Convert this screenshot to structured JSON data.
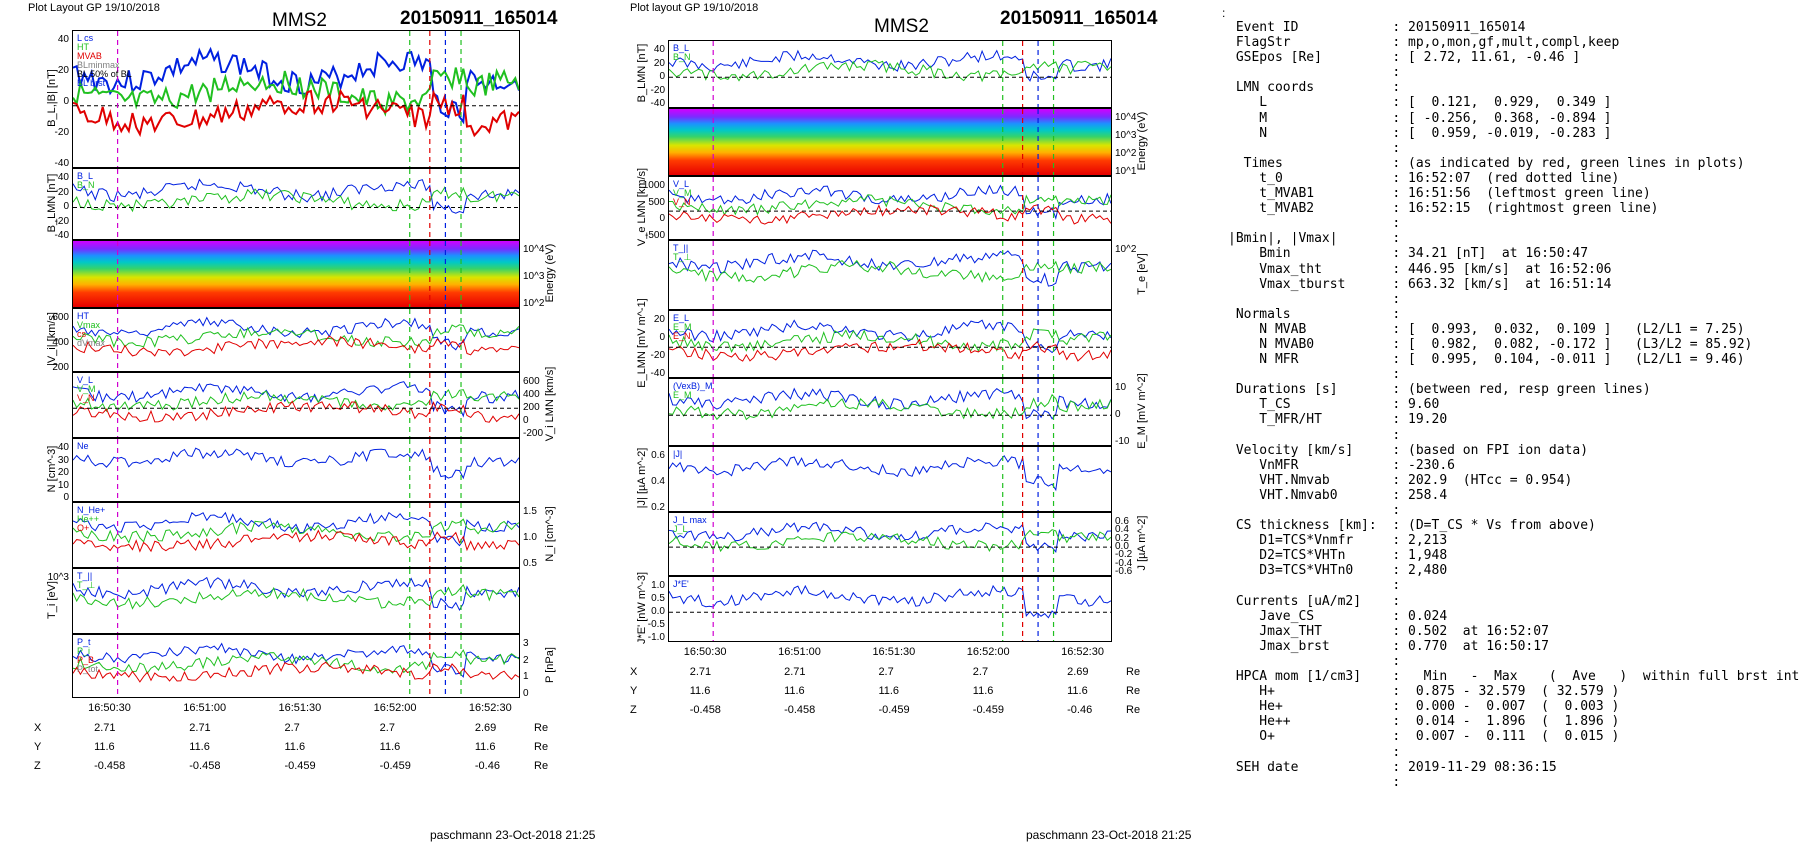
{
  "left": {
    "plot_label": "Plot Layout GP 19/10/2018",
    "spacecraft": "MMS2",
    "event": "20150911_165014",
    "footer": "paschmann 23-Oct-2018 21:25",
    "time_ticks": [
      "16:50:30",
      "16:51:00",
      "16:51:30",
      "16:52:00",
      "16:52:30"
    ],
    "coords": {
      "X": [
        "2.71",
        "2.71",
        "2.7",
        "2.7",
        "2.69"
      ],
      "Y": [
        "11.6",
        "11.6",
        "11.6",
        "11.6",
        "11.6"
      ],
      "Z": [
        "-0.458",
        "-0.458",
        "-0.459",
        "-0.459",
        "-0.46"
      ],
      "unit": "Re"
    },
    "panels": [
      {
        "ylabel": "B_L,|B| [nT]",
        "ticks": [
          "40",
          "20",
          "0",
          "-20",
          "-40"
        ],
        "legend": [
          "L cs",
          "HT",
          "MVAB",
          "BLminmax",
          "BL 50% of BL",
          "BL brst"
        ]
      },
      {
        "ylabel": "B_LMN [nT]",
        "ticks": [
          "40",
          "20",
          "0",
          "-20",
          "-40"
        ],
        "legend": [
          "B_L",
          "B_N"
        ]
      },
      {
        "ylabel": "Energy (eV)",
        "ticks": [
          "10^4",
          "10^3",
          "10^2"
        ],
        "legend": []
      },
      {
        "ylabel": "|V_i| [km/s]",
        "ticks": [
          "600",
          "400",
          "200"
        ],
        "legend": [
          "HT",
          "Vmax",
          "cs",
          "dVmax"
        ]
      },
      {
        "ylabel": "V_i LMN [km/s]",
        "ticks": [
          "600",
          "400",
          "200",
          "0",
          "-200"
        ],
        "legend": [
          "V_L",
          "V_M",
          "V_N"
        ]
      },
      {
        "ylabel": "N [cm^-3]",
        "ticks": [
          "40",
          "30",
          "20",
          "10",
          "0"
        ],
        "legend": [
          "Ne"
        ]
      },
      {
        "ylabel": "N_i [cm^-3]",
        "ticks": [
          "1.5",
          "1.0",
          "0.5"
        ],
        "legend": [
          "N_He+",
          "He++",
          "O+"
        ]
      },
      {
        "ylabel": "T_i [eV]",
        "ticks": [
          "10^3"
        ],
        "legend": [
          "T_||",
          "T_⊥"
        ]
      },
      {
        "ylabel": "P [nPa]",
        "ticks": [
          "3",
          "2",
          "1",
          "0"
        ],
        "legend": [
          "P_t",
          "P_i",
          "P_B",
          "P_tot"
        ]
      }
    ]
  },
  "middle": {
    "plot_label": "Plot layout GP 19/10/2018",
    "spacecraft": "MMS2",
    "event": "20150911_165014",
    "footer": "paschmann 23-Oct-2018 21:25",
    "time_ticks": [
      "16:50:30",
      "16:51:00",
      "16:51:30",
      "16:52:00",
      "16:52:30"
    ],
    "coords": {
      "X": [
        "2.71",
        "2.71",
        "2.7",
        "2.7",
        "2.69"
      ],
      "Y": [
        "11.6",
        "11.6",
        "11.6",
        "11.6",
        "11.6"
      ],
      "Z": [
        "-0.458",
        "-0.458",
        "-0.459",
        "-0.459",
        "-0.46"
      ],
      "unit": "Re"
    },
    "panels": [
      {
        "ylabel": "B_LMN [nT]",
        "ticks": [
          "40",
          "20",
          "0",
          "-20",
          "-40"
        ],
        "legend": [
          "B_L",
          "B_N"
        ]
      },
      {
        "ylabel": "Energy (eV)",
        "ticks": [
          "10^4",
          "10^3",
          "10^2",
          "10^1"
        ],
        "legend": []
      },
      {
        "ylabel": "V_e LMN [km/s]",
        "ticks": [
          "1000",
          "500",
          "0",
          "-500"
        ],
        "legend": [
          "V_L",
          "V_M",
          "V_N"
        ]
      },
      {
        "ylabel": "T_e [eV]",
        "ticks": [
          "10^2"
        ],
        "legend": [
          "T_||",
          "T_⊥"
        ]
      },
      {
        "ylabel": "E_LMN [mV m^-1]",
        "ticks": [
          "20",
          "0",
          "-20",
          "-40"
        ],
        "legend": [
          "E_L",
          "E_M",
          "E_N"
        ]
      },
      {
        "ylabel": "E_M [mV m^-2]",
        "ticks": [
          "10",
          "0",
          "-10"
        ],
        "legend": [
          "(VexB)_M",
          "E_M"
        ]
      },
      {
        "ylabel": "|J| [µA m^-2]",
        "ticks": [
          "0.6",
          "0.4",
          "0.2"
        ],
        "legend": [
          "|J|"
        ]
      },
      {
        "ylabel": "J [µA m^-2]",
        "ticks": [
          "0.6",
          "0.4",
          "0.2",
          "0.0",
          "-0.2",
          "-0.4",
          "-0.6"
        ],
        "legend": [
          "J_L max",
          "J_L"
        ]
      },
      {
        "ylabel": "J*E' [nW m^-3]",
        "ticks": [
          "1.0",
          "0.5",
          "0.0",
          "-0.5",
          "-1.0"
        ],
        "legend": [
          "J*E'"
        ]
      }
    ]
  },
  "summary_lines": [
    " Event ID            : 20150911_165014",
    " FlagStr             : mp,o,mon,gf,mult,compl,keep",
    " GSEpos [Re]         : [ 2.72, 11.61, -0.46 ]",
    "                     :",
    " LMN coords          :",
    "    L                : [  0.121,  0.929,  0.349 ]",
    "    M                : [ -0.256,  0.368, -0.894 ]",
    "    N                : [  0.959, -0.019, -0.283 ]",
    "                     :",
    "  Times              : (as indicated by red, green lines in plots)",
    "    t_0              : 16:52:07  (red dotted line)",
    "    t_MVAB1          : 16:51:56  (leftmost green line)",
    "    t_MVAB2          : 16:52:15  (rightmost green line)",
    "                     :",
    "|Bmin|, |Vmax|       :",
    "    Bmin             : 34.21 [nT]  at 16:50:47",
    "    Vmax_tht         : 446.95 [km/s]  at 16:52:06",
    "    Vmax_tburst      : 663.32 [km/s]  at 16:51:14",
    "                     :",
    " Normals             :",
    "    N MVAB           : [  0.993,  0.032,  0.109 ]   (L2/L1 = 7.25)",
    "    N MVAB0          : [  0.982,  0.082, -0.172 ]   (L3/L2 = 85.92)",
    "    N MFR            : [  0.995,  0.104, -0.011 ]   (L2/L1 = 9.46)",
    "                     :",
    " Durations [s]       : (between red, resp green lines)",
    "    T_CS             : 9.60",
    "    T_MFR/HT         : 19.20",
    "                     :",
    " Velocity [km/s]     : (based on FPI ion data)",
    "    VnMFR            : -230.6",
    "    VHT.Nmvab        : 202.9  (HTcc = 0.954)",
    "    VHT.Nmvab0       : 258.4",
    "                     :",
    " CS thickness [km]:  : (D=T_CS * Vs from above)",
    "    D1=TCS*Vnmfr     : 2,213",
    "    D2=TCS*VHTn      : 1,948",
    "    D3=TCS*VHTn0     : 2,480",
    "                     :",
    " Currents [uA/m2]    :",
    "    Jave_CS          : 0.024",
    "    Jmax_THT         : 0.502  at 16:52:07",
    "    Jmax_brst        : 0.770  at 16:50:17",
    "                     :",
    " HPCA mom [1/cm3]    :   Min   -  Max    (  Ave   )  within full brst int",
    "    H+               :  0.875 - 32.579  ( 32.579 )",
    "    He+              :  0.000 -  0.007  (  0.003 )",
    "    He++             :  0.014 -  1.896  (  1.896 )",
    "    O+               :  0.007 -  0.111  (  0.015 )",
    "                     :",
    " SEH date            : 2019-11-29 08:36:15",
    "                     :"
  ],
  "colors": {
    "event": "#a01010",
    "red": "#e00000",
    "green": "#20c020",
    "blue": "#0020e0",
    "magenta": "#d000d0",
    "gray": "#808080"
  },
  "chart_data": [
    {
      "type": "line",
      "title": "MMS2 20150911_165014 (left column)",
      "xlabel": "",
      "x_ticks": [
        "16:50:30",
        "16:51:00",
        "16:51:30",
        "16:52:00",
        "16:52:30"
      ],
      "ylabel": "B_L,|B| [nT]",
      "ylim": [
        -50,
        50
      ]
    },
    {
      "type": "line",
      "title": "MMS2 20150911_165014 (middle column)",
      "xlabel": "",
      "x_ticks": [
        "16:50:30",
        "16:51:00",
        "16:51:30",
        "16:52:00",
        "16:52:30"
      ],
      "ylabel": "B_LMN [nT]",
      "ylim": [
        -50,
        50
      ]
    }
  ]
}
